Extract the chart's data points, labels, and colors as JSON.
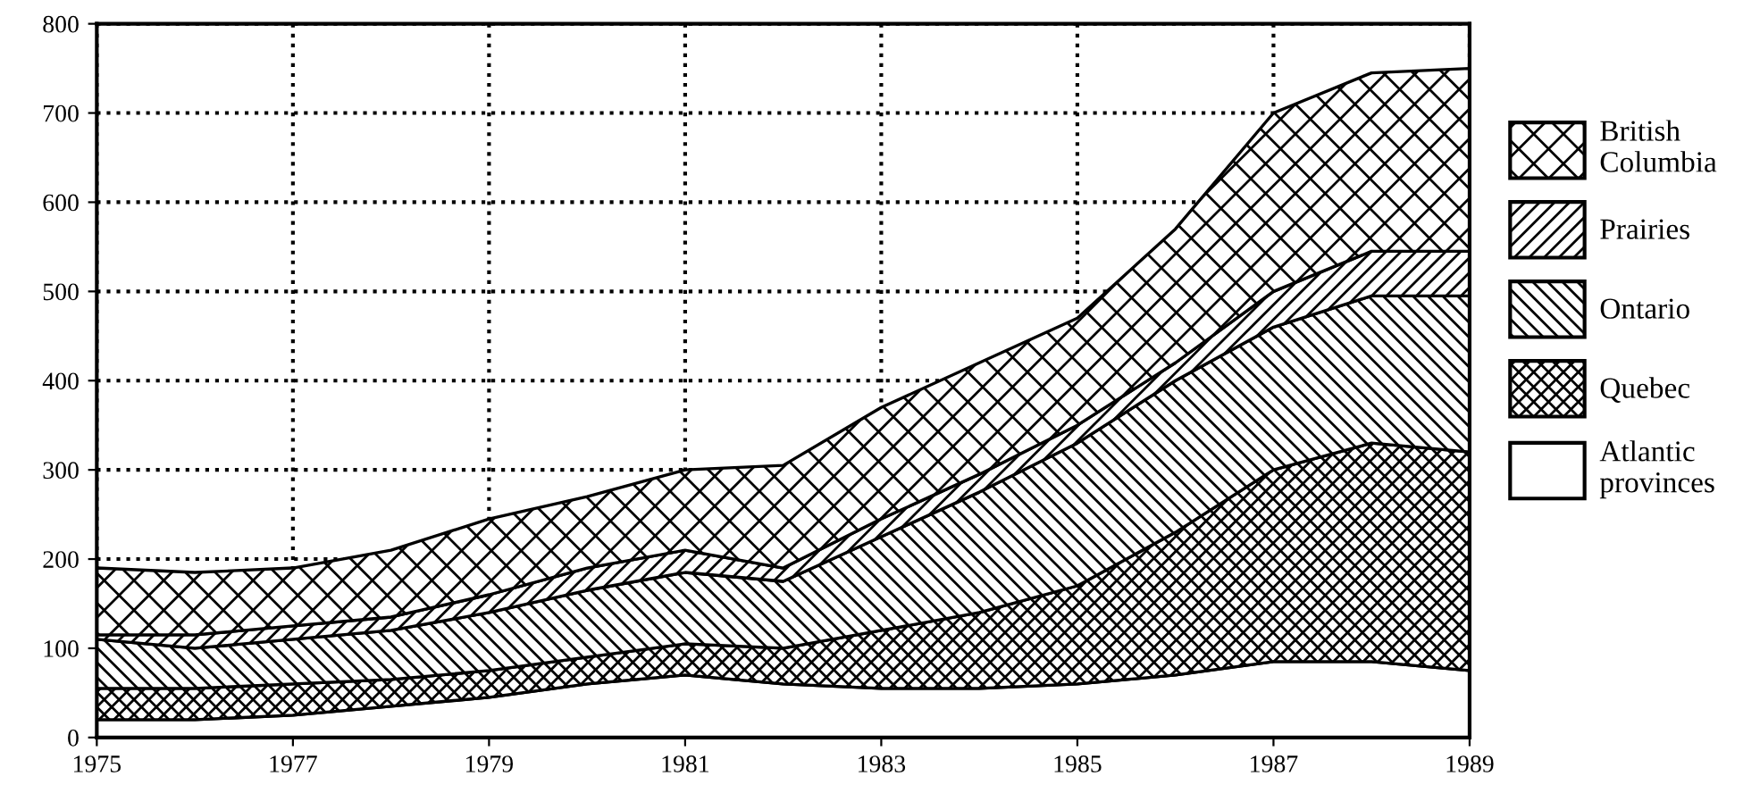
{
  "chart_data": {
    "type": "area",
    "stacked": true,
    "x": [
      1975,
      1976,
      1977,
      1978,
      1979,
      1980,
      1981,
      1982,
      1983,
      1984,
      1985,
      1986,
      1987,
      1988,
      1989
    ],
    "series": [
      {
        "name": "Atlantic provinces",
        "color": "#ffffff",
        "values": [
          20,
          20,
          25,
          35,
          45,
          60,
          70,
          60,
          55,
          55,
          60,
          70,
          85,
          85,
          75
        ]
      },
      {
        "name": "Quebec",
        "color": "#000000",
        "values": [
          35,
          35,
          35,
          30,
          30,
          30,
          35,
          40,
          65,
          85,
          110,
          160,
          215,
          245,
          245
        ]
      },
      {
        "name": "Ontario",
        "color": "#000000",
        "values": [
          55,
          45,
          50,
          55,
          65,
          75,
          80,
          75,
          105,
          135,
          160,
          170,
          160,
          165,
          175
        ]
      },
      {
        "name": "Prairies",
        "color": "#000000",
        "values": [
          5,
          15,
          15,
          15,
          20,
          25,
          25,
          15,
          20,
          20,
          20,
          20,
          40,
          50,
          50
        ]
      },
      {
        "name": "British Columbia",
        "color": "#000000",
        "values": [
          75,
          70,
          65,
          75,
          85,
          80,
          90,
          115,
          125,
          125,
          120,
          150,
          200,
          200,
          205
        ]
      }
    ],
    "xlim": [
      1975,
      1989
    ],
    "xticks": [
      1975,
      1977,
      1979,
      1981,
      1983,
      1985,
      1987,
      1989
    ],
    "ylim": [
      0,
      800
    ],
    "yticks": [
      0,
      100,
      200,
      300,
      400,
      500,
      600,
      700,
      800
    ],
    "grid": true,
    "line_style": "dotted",
    "legend": "right"
  }
}
